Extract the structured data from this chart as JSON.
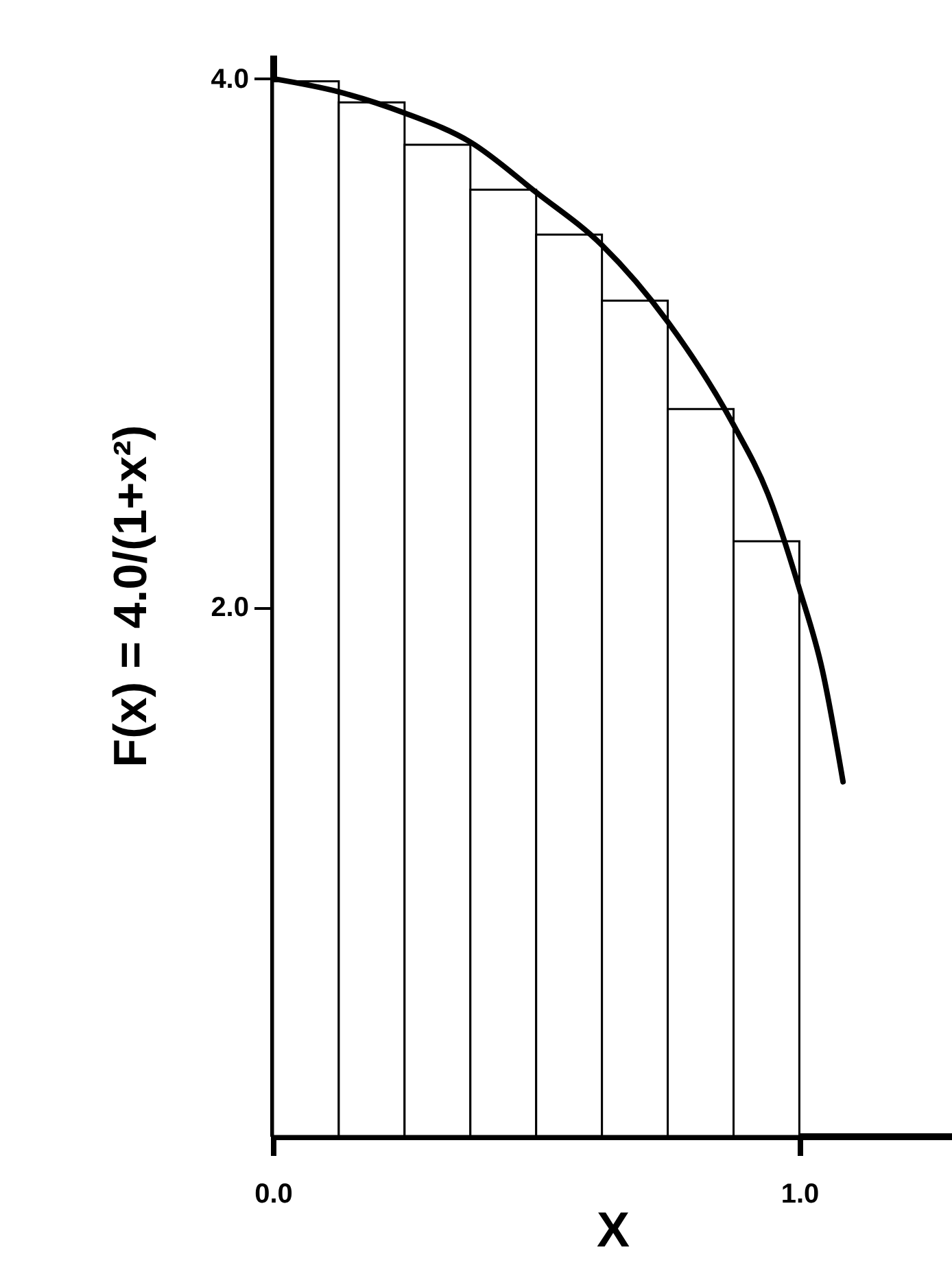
{
  "chart_data": {
    "type": "histogram",
    "xlabel": "X",
    "ylabel": "F(x) = 4.0/(1+x²)",
    "series": [
      {
        "color": "#ffffff",
        "bins": [
          0,
          0.125,
          0.25,
          0.375,
          0.5,
          0.625,
          0.75,
          0.875,
          1.0
        ],
        "values": [
          3.99,
          3.91,
          3.75,
          3.58,
          3.41,
          3.16,
          2.75,
          2.25
        ]
      },
      {
        "type": "line",
        "color": "#000000",
        "x": [
          0,
          0.125,
          0.25,
          0.375,
          0.5,
          0.625,
          0.75,
          0.875,
          0.94,
          1.0,
          1.044,
          1.083
        ],
        "values": [
          4.0,
          3.95,
          3.87,
          3.76,
          3.57,
          3.37,
          3.08,
          2.69,
          2.43,
          2.07,
          1.76,
          1.34
        ]
      }
    ],
    "xlim": [
      0,
      1.29
    ],
    "ylim": [
      0,
      4.09
    ],
    "xticks": [
      {
        "value": 0,
        "label": "0.0"
      },
      {
        "value": 1,
        "label": "1.0"
      }
    ],
    "yticks": [
      {
        "value": 2,
        "label": "2.0"
      },
      {
        "value": 4,
        "label": "4.0"
      }
    ],
    "grid": false
  }
}
